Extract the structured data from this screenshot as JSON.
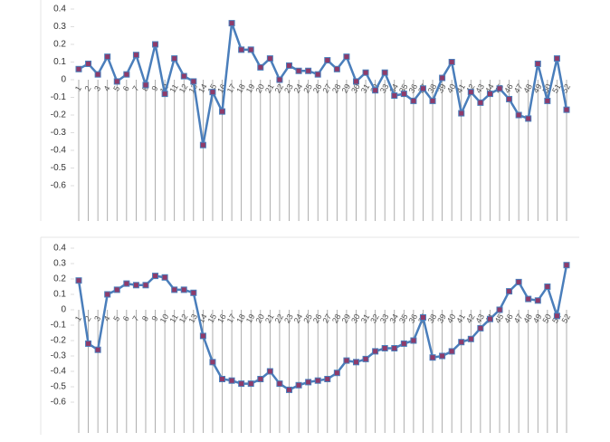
{
  "chart_data": [
    {
      "type": "line",
      "color": "#4a7ebb",
      "marker_color": "#8e3b6a",
      "categories": [
        "1",
        "2",
        "3",
        "4",
        "5",
        "6",
        "7",
        "8",
        "9",
        "10",
        "11",
        "12",
        "13",
        "14",
        "15",
        "16",
        "17",
        "18",
        "19",
        "20",
        "21",
        "22",
        "23",
        "24",
        "25",
        "26",
        "27",
        "28",
        "29",
        "30",
        "31",
        "32",
        "33",
        "34",
        "35",
        "36",
        "37",
        "38",
        "39",
        "40",
        "41",
        "42",
        "43",
        "44",
        "45",
        "46",
        "47",
        "48",
        "49",
        "50",
        "51",
        "52"
      ],
      "values": [
        0.06,
        0.09,
        0.03,
        0.13,
        -0.01,
        0.03,
        0.14,
        -0.03,
        0.2,
        -0.08,
        0.12,
        0.02,
        -0.01,
        -0.37,
        -0.07,
        -0.18,
        0.32,
        0.17,
        0.17,
        0.07,
        0.12,
        0.0,
        0.08,
        0.05,
        0.05,
        0.03,
        0.11,
        0.06,
        0.13,
        -0.01,
        0.04,
        -0.06,
        0.04,
        -0.09,
        -0.08,
        -0.12,
        -0.05,
        -0.12,
        0.01,
        0.1,
        -0.19,
        -0.07,
        -0.13,
        -0.08,
        -0.05,
        -0.11,
        -0.2,
        -0.22,
        0.09,
        -0.12,
        0.12,
        -0.17
      ],
      "ylim": [
        -0.8,
        0.4
      ],
      "yticks": [
        0.4,
        0.3,
        0.2,
        0.1,
        0,
        -0.1,
        -0.2,
        -0.3,
        -0.4,
        -0.5,
        -0.6
      ]
    },
    {
      "type": "line",
      "color": "#4a7ebb",
      "marker_color": "#8e3b6a",
      "categories": [
        "1",
        "2",
        "3",
        "4",
        "5",
        "6",
        "7",
        "8",
        "9",
        "10",
        "11",
        "12",
        "13",
        "14",
        "15",
        "16",
        "17",
        "18",
        "19",
        "20",
        "21",
        "22",
        "23",
        "24",
        "25",
        "26",
        "27",
        "28",
        "29",
        "30",
        "31",
        "32",
        "33",
        "34",
        "35",
        "36",
        "37",
        "38",
        "39",
        "40",
        "41",
        "42",
        "43",
        "44",
        "45",
        "46",
        "47",
        "48",
        "49",
        "50",
        "51",
        "52"
      ],
      "values": [
        0.19,
        -0.22,
        -0.26,
        0.1,
        0.13,
        0.17,
        0.16,
        0.16,
        0.22,
        0.21,
        0.13,
        0.13,
        0.11,
        -0.17,
        -0.34,
        -0.45,
        -0.46,
        -0.48,
        -0.48,
        -0.45,
        -0.4,
        -0.48,
        -0.52,
        -0.49,
        -0.47,
        -0.46,
        -0.45,
        -0.41,
        -0.33,
        -0.34,
        -0.32,
        -0.27,
        -0.25,
        -0.25,
        -0.22,
        -0.2,
        -0.05,
        -0.31,
        -0.3,
        -0.27,
        -0.21,
        -0.19,
        -0.12,
        -0.06,
        0.0,
        0.12,
        0.18,
        0.07,
        0.06,
        0.15,
        -0.04,
        0.29
      ],
      "ylim": [
        -0.8,
        0.4
      ],
      "yticks": [
        0.4,
        0.3,
        0.2,
        0.1,
        0,
        -0.1,
        -0.2,
        -0.3,
        -0.4,
        -0.5,
        -0.6
      ]
    }
  ]
}
